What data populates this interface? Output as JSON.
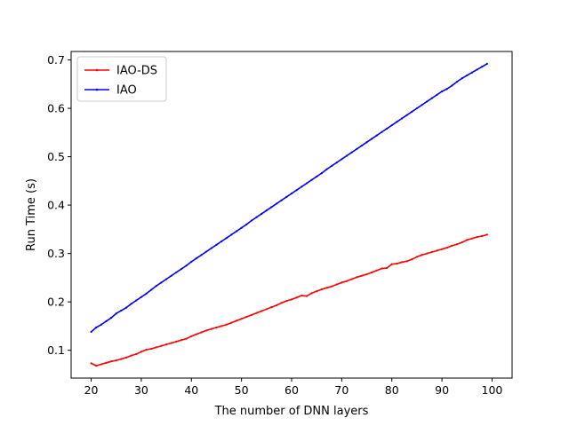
{
  "chart_data": {
    "type": "line",
    "xlabel": "The number of DNN layers",
    "ylabel": "Run Time (s)",
    "xlim": [
      16,
      104
    ],
    "ylim": [
      0.0425,
      0.7175
    ],
    "xticks": [
      20,
      30,
      40,
      50,
      60,
      70,
      80,
      90,
      100
    ],
    "yticks": [
      0.1,
      0.2,
      0.3,
      0.4,
      0.5,
      0.6,
      0.7
    ],
    "grid": false,
    "legend_position": "upper-left",
    "series": [
      {
        "name": "IAO-DS",
        "color": "#ff0000",
        "x": [
          20,
          21,
          22,
          23,
          24,
          25,
          26,
          27,
          28,
          29,
          30,
          31,
          32,
          33,
          34,
          35,
          36,
          37,
          38,
          39,
          40,
          41,
          42,
          43,
          44,
          45,
          46,
          47,
          48,
          49,
          50,
          51,
          52,
          53,
          54,
          55,
          56,
          57,
          58,
          59,
          60,
          61,
          62,
          63,
          64,
          65,
          66,
          67,
          68,
          69,
          70,
          71,
          72,
          73,
          74,
          75,
          76,
          77,
          78,
          79,
          80,
          81,
          82,
          83,
          84,
          85,
          86,
          87,
          88,
          89,
          90,
          91,
          92,
          93,
          94,
          95,
          96,
          97,
          98,
          99
        ],
        "y": [
          0.073,
          0.068,
          0.071,
          0.074,
          0.077,
          0.079,
          0.082,
          0.085,
          0.089,
          0.092,
          0.097,
          0.101,
          0.103,
          0.106,
          0.109,
          0.112,
          0.115,
          0.118,
          0.121,
          0.124,
          0.129,
          0.133,
          0.137,
          0.141,
          0.144,
          0.147,
          0.15,
          0.153,
          0.157,
          0.161,
          0.165,
          0.169,
          0.173,
          0.177,
          0.181,
          0.185,
          0.189,
          0.193,
          0.198,
          0.202,
          0.205,
          0.209,
          0.213,
          0.212,
          0.218,
          0.222,
          0.226,
          0.229,
          0.232,
          0.236,
          0.24,
          0.243,
          0.247,
          0.251,
          0.254,
          0.257,
          0.261,
          0.265,
          0.269,
          0.27,
          0.278,
          0.279,
          0.282,
          0.284,
          0.288,
          0.293,
          0.297,
          0.3,
          0.303,
          0.306,
          0.309,
          0.312,
          0.316,
          0.319,
          0.323,
          0.328,
          0.331,
          0.334,
          0.336,
          0.339
        ]
      },
      {
        "name": "IAO",
        "color": "#0000ff",
        "x": [
          20,
          21,
          22,
          23,
          24,
          25,
          26,
          27,
          28,
          29,
          30,
          31,
          32,
          33,
          34,
          35,
          36,
          37,
          38,
          39,
          40,
          41,
          42,
          43,
          44,
          45,
          46,
          47,
          48,
          49,
          50,
          51,
          52,
          53,
          54,
          55,
          56,
          57,
          58,
          59,
          60,
          61,
          62,
          63,
          64,
          65,
          66,
          67,
          68,
          69,
          70,
          71,
          72,
          73,
          74,
          75,
          76,
          77,
          78,
          79,
          80,
          81,
          82,
          83,
          84,
          85,
          86,
          87,
          88,
          89,
          90,
          91,
          92,
          93,
          94,
          95,
          96,
          97,
          98,
          99
        ],
        "y": [
          0.138,
          0.147,
          0.153,
          0.16,
          0.167,
          0.176,
          0.182,
          0.188,
          0.196,
          0.203,
          0.21,
          0.217,
          0.225,
          0.233,
          0.24,
          0.247,
          0.254,
          0.261,
          0.268,
          0.275,
          0.283,
          0.29,
          0.297,
          0.304,
          0.311,
          0.318,
          0.325,
          0.332,
          0.339,
          0.346,
          0.353,
          0.36,
          0.368,
          0.375,
          0.382,
          0.389,
          0.396,
          0.403,
          0.41,
          0.417,
          0.424,
          0.431,
          0.438,
          0.445,
          0.452,
          0.459,
          0.466,
          0.474,
          0.481,
          0.488,
          0.495,
          0.502,
          0.509,
          0.516,
          0.523,
          0.53,
          0.537,
          0.544,
          0.551,
          0.558,
          0.565,
          0.572,
          0.579,
          0.586,
          0.593,
          0.6,
          0.607,
          0.614,
          0.621,
          0.628,
          0.635,
          0.64,
          0.647,
          0.655,
          0.662,
          0.668,
          0.674,
          0.68,
          0.686,
          0.692
        ]
      }
    ]
  }
}
